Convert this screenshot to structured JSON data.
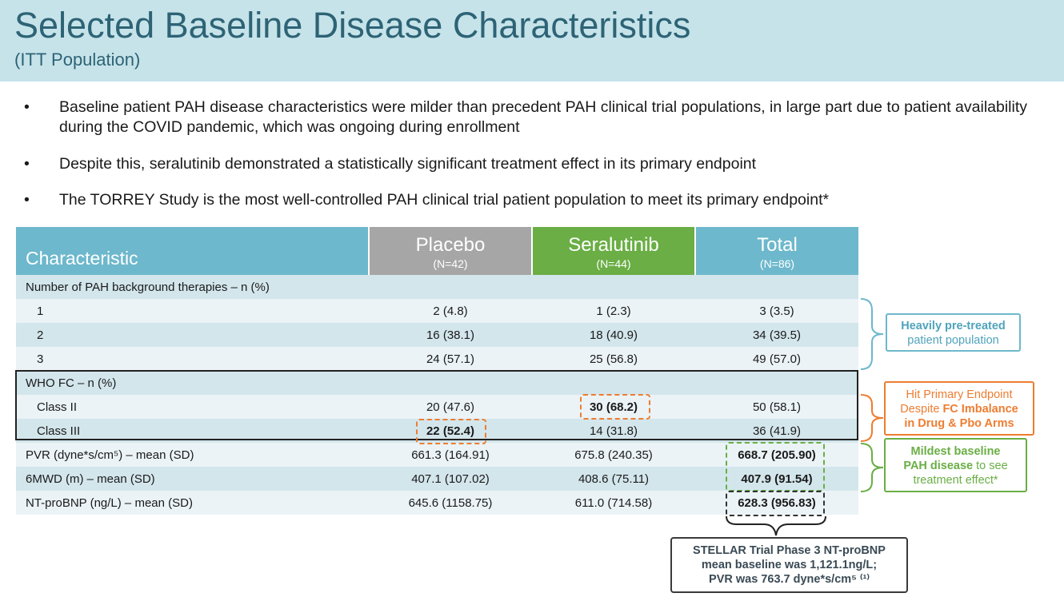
{
  "header": {
    "title": "Selected Baseline Disease Characteristics",
    "subtitle": "(ITT Population)"
  },
  "bullets": [
    "Baseline patient PAH disease characteristics were milder than precedent PAH clinical trial populations, in large part due to patient availability during the COVID pandemic, which was ongoing during enrollment",
    "Despite this, seralutinib demonstrated a statistically significant treatment effect in its primary endpoint",
    "The TORREY Study is the most well-controlled PAH clinical trial patient population to meet its primary endpoint*"
  ],
  "bullet_marker": "•",
  "table": {
    "columns": [
      {
        "name": "Characteristic",
        "sub": ""
      },
      {
        "name": "Placebo",
        "sub": "(N=42)"
      },
      {
        "name": "Seralutinib",
        "sub": "(N=44)"
      },
      {
        "name": "Total",
        "sub": "(N=86)"
      }
    ],
    "rows": [
      {
        "label": "Number of PAH background therapies – n (%)",
        "values": [
          "",
          "",
          ""
        ]
      },
      {
        "label": "1",
        "values": [
          "2 (4.8)",
          "1 (2.3)",
          "3 (3.5)"
        ]
      },
      {
        "label": "2",
        "values": [
          "16 (38.1)",
          "18 (40.9)",
          "34 (39.5)"
        ]
      },
      {
        "label": "3",
        "values": [
          "24 (57.1)",
          "25 (56.8)",
          "49 (57.0)"
        ]
      },
      {
        "label": "WHO FC – n (%)",
        "values": [
          "",
          "",
          ""
        ]
      },
      {
        "label": "Class II",
        "values": [
          "20 (47.6)",
          "30 (68.2)",
          "50 (58.1)"
        ]
      },
      {
        "label": "Class III",
        "values": [
          "22 (52.4)",
          "14 (31.8)",
          "36 (41.9)"
        ]
      },
      {
        "label": "PVR (dyne*s/cm⁵) – mean (SD)",
        "values": [
          "661.3 (164.91)",
          "675.8 (240.35)",
          "668.7 (205.90)"
        ]
      },
      {
        "label": "6MWD (m) – mean (SD)",
        "values": [
          "407.1 (107.02)",
          "408.6 (75.11)",
          "407.9 (91.54)"
        ]
      },
      {
        "label": "NT-proBNP (ng/L) – mean (SD)",
        "values": [
          "645.6 (1158.75)",
          "611.0 (714.58)",
          "628.3 (956.83)"
        ]
      }
    ]
  },
  "callouts": {
    "pretreated": {
      "line1": "Heavily pre-treated",
      "line2": "patient population"
    },
    "endpoint": {
      "line1": "Hit Primary Endpoint",
      "line2a": "Despite ",
      "line2b": "FC Imbalance",
      "line3": "in Drug & Pbo Arms"
    },
    "mildest": {
      "line1": "Mildest baseline",
      "line2a": "PAH disease",
      "line2b": " to see",
      "line3": "treatment effect*"
    },
    "stellar": {
      "line1": "STELLAR Trial Phase 3 NT-proBNP",
      "line2": "mean baseline was 1,121.1ng/L;",
      "line3": "PVR was 763.7 dyne*s/cm⁵ ⁽¹⁾"
    }
  },
  "colors": {
    "header_bg": "#c6e3ea",
    "title": "#2d6375",
    "placebo": "#a6a6a6",
    "seralutinib": "#6aae45",
    "total": "#6db8cc",
    "blue_callout": "#6db8cc",
    "orange_callout": "#ed7d31",
    "green_callout": "#6aae45",
    "dark_callout": "#3a3a3a"
  }
}
